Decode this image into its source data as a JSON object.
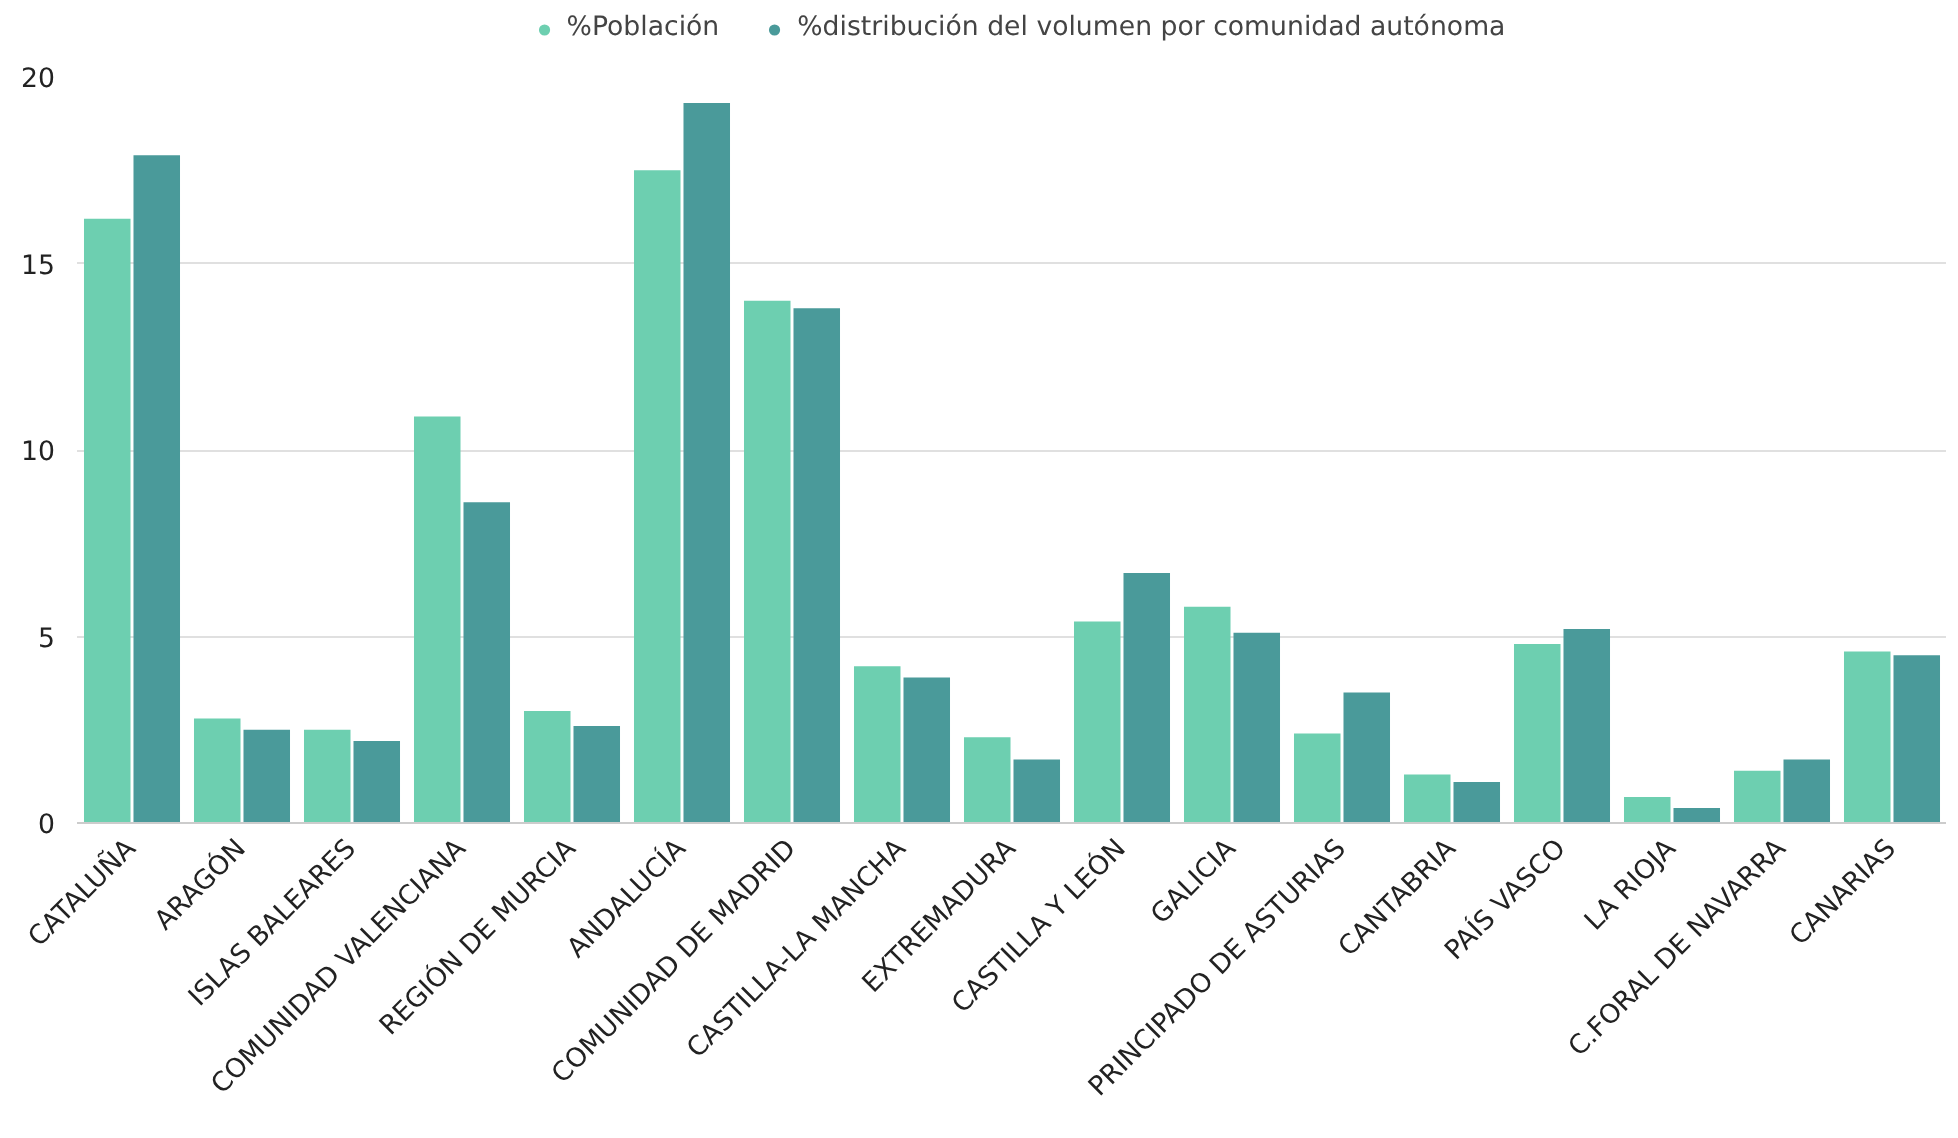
{
  "chart_data": {
    "type": "bar",
    "categories": [
      "CATALUÑA",
      "ARAGÓN",
      "ISLAS BALEARES",
      "COMUNIDAD VALENCIANA",
      "REGIÓN DE MURCIA",
      "ANDALUCÍA",
      "COMUNIDAD DE MADRID",
      "CASTILLA-LA MANCHA",
      "EXTREMADURA",
      "CASTILLA Y LEÓN",
      "GALICIA",
      "PRINCIPADO DE ASTURIAS",
      "CANTABRIA",
      "PAÍS VASCO",
      "LA RIOJA",
      "C.FORAL DE NAVARRA",
      "CANARIAS"
    ],
    "series": [
      {
        "name": "%Población",
        "color": "#6dcfb0",
        "values": [
          16.2,
          2.8,
          2.5,
          10.9,
          3.0,
          17.5,
          14.0,
          4.2,
          2.3,
          5.4,
          5.8,
          2.4,
          1.3,
          4.8,
          0.7,
          1.4,
          4.6
        ]
      },
      {
        "name": "%distribución del volumen por comunidad autónoma",
        "color": "#4a9a9a",
        "values": [
          17.9,
          2.5,
          2.2,
          8.6,
          2.6,
          19.3,
          13.8,
          3.9,
          1.7,
          6.7,
          5.1,
          3.5,
          1.1,
          5.2,
          0.4,
          1.7,
          4.5
        ]
      }
    ],
    "ylim": [
      0,
      20
    ],
    "yticks": [
      0,
      5,
      10,
      15,
      20
    ],
    "grid": "y",
    "legend": "top"
  }
}
